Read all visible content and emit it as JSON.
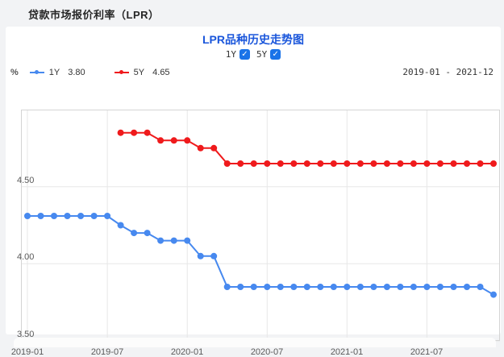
{
  "page": {
    "header_title": "贷款市场报价利率（LPR）"
  },
  "chart_card": {
    "title": "LPR品种历史走势图",
    "toggles": [
      {
        "label": "1Y",
        "checked": true
      },
      {
        "label": "5Y",
        "checked": true
      }
    ],
    "unit_label": "%",
    "legend": [
      {
        "name": "1Y",
        "value": "3.80",
        "color": "#4789ef"
      },
      {
        "name": "5Y",
        "value": "4.65",
        "color": "#ef1a1c"
      }
    ],
    "date_range": "2019-01 - 2021-12",
    "colors": {
      "title_blue": "#1a56db",
      "checkbox_blue": "#1a73e8",
      "grid": "#e7e7e7",
      "border": "#d4d4d4",
      "series_1y": "#4789ef",
      "series_5y": "#ef1a1c"
    }
  },
  "chart_data": {
    "type": "line",
    "title": "LPR品种历史走势图",
    "x": [
      "2019-01",
      "2019-02",
      "2019-03",
      "2019-04",
      "2019-05",
      "2019-06",
      "2019-07",
      "2019-08",
      "2019-09",
      "2019-10",
      "2019-11",
      "2019-12",
      "2020-01",
      "2020-02",
      "2020-03",
      "2020-04",
      "2020-05",
      "2020-06",
      "2020-07",
      "2020-08",
      "2020-09",
      "2020-10",
      "2020-11",
      "2020-12",
      "2021-01",
      "2021-02",
      "2021-03",
      "2021-04",
      "2021-05",
      "2021-06",
      "2021-07",
      "2021-08",
      "2021-09",
      "2021-10",
      "2021-11",
      "2021-12"
    ],
    "series": [
      {
        "name": "1Y",
        "color": "#4789ef",
        "values": [
          4.31,
          4.31,
          4.31,
          4.31,
          4.31,
          4.31,
          4.31,
          4.25,
          4.2,
          4.2,
          4.15,
          4.15,
          4.15,
          4.05,
          4.05,
          3.85,
          3.85,
          3.85,
          3.85,
          3.85,
          3.85,
          3.85,
          3.85,
          3.85,
          3.85,
          3.85,
          3.85,
          3.85,
          3.85,
          3.85,
          3.85,
          3.85,
          3.85,
          3.85,
          3.85,
          3.8
        ]
      },
      {
        "name": "5Y",
        "color": "#ef1a1c",
        "values": [
          null,
          null,
          null,
          null,
          null,
          null,
          null,
          4.85,
          4.85,
          4.85,
          4.8,
          4.8,
          4.8,
          4.75,
          4.75,
          4.65,
          4.65,
          4.65,
          4.65,
          4.65,
          4.65,
          4.65,
          4.65,
          4.65,
          4.65,
          4.65,
          4.65,
          4.65,
          4.65,
          4.65,
          4.65,
          4.65,
          4.65,
          4.65,
          4.65,
          4.65
        ]
      }
    ],
    "ylabel": "%",
    "ylim": [
      3.5,
      5.0
    ],
    "yticks": [
      3.5,
      4.0,
      4.5
    ],
    "ytick_labels": [
      "3.50",
      "4.00",
      "4.50"
    ],
    "xtick_indices": [
      0,
      6,
      12,
      18,
      24,
      30
    ],
    "xtick_labels": [
      "2019-01",
      "2019-07",
      "2020-01",
      "2020-07",
      "2021-01",
      "2021-07"
    ],
    "grid": true,
    "legend_position": "top-left"
  }
}
